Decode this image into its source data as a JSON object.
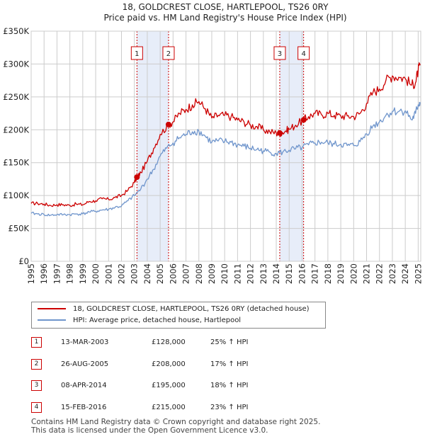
{
  "chart_data": {
    "type": "line",
    "title": "18, GOLDCREST CLOSE, HARTLEPOOL, TS26 0RY",
    "subtitle": "Price paid vs. HM Land Registry's House Price Index (HPI)",
    "x_range": [
      1995,
      2025.2
    ],
    "y_range": [
      0,
      350000
    ],
    "y_ticks": [
      0,
      50000,
      100000,
      150000,
      200000,
      250000,
      300000,
      350000
    ],
    "y_tick_labels": [
      "£0",
      "£50K",
      "£100K",
      "£150K",
      "£200K",
      "£250K",
      "£300K",
      "£350K"
    ],
    "x_ticks": [
      1995,
      1996,
      1997,
      1998,
      1999,
      2000,
      2001,
      2002,
      2003,
      2004,
      2005,
      2006,
      2007,
      2008,
      2009,
      2010,
      2011,
      2012,
      2013,
      2014,
      2015,
      2016,
      2017,
      2018,
      2019,
      2020,
      2021,
      2022,
      2023,
      2024,
      2025
    ],
    "x_tick_labels": [
      "1995",
      "1996",
      "1997",
      "1998",
      "1999",
      "2000",
      "2001",
      "2002",
      "2003",
      "2004",
      "2005",
      "2006",
      "2007",
      "2008",
      "2009",
      "2010",
      "2011",
      "2012",
      "2013",
      "2014",
      "2015",
      "2016",
      "2017",
      "2018",
      "2019",
      "2020",
      "2021",
      "2022",
      "2023",
      "2024",
      "2025"
    ],
    "series": [
      {
        "name": "18, GOLDCREST CLOSE, HARTLEPOOL, TS26 0RY (detached house)",
        "color": "#cc0000",
        "points": [
          [
            1995.0,
            88000
          ],
          [
            1995.5,
            88000
          ],
          [
            1996.0,
            87000
          ],
          [
            1996.5,
            85000
          ],
          [
            1997.0,
            86000
          ],
          [
            1997.5,
            86000
          ],
          [
            1998.0,
            85000
          ],
          [
            1998.5,
            87000
          ],
          [
            1999.0,
            86000
          ],
          [
            1999.5,
            91000
          ],
          [
            2000.0,
            92000
          ],
          [
            2000.5,
            95000
          ],
          [
            2001.0,
            94000
          ],
          [
            2001.5,
            97000
          ],
          [
            2002.0,
            100000
          ],
          [
            2002.5,
            108000
          ],
          [
            2003.0,
            120000
          ],
          [
            2003.2,
            128000
          ],
          [
            2003.5,
            135000
          ],
          [
            2004.0,
            152000
          ],
          [
            2004.5,
            172000
          ],
          [
            2005.0,
            193000
          ],
          [
            2005.65,
            208000
          ],
          [
            2006.0,
            212000
          ],
          [
            2006.5,
            225000
          ],
          [
            2007.0,
            231000
          ],
          [
            2007.5,
            238000
          ],
          [
            2008.0,
            243000
          ],
          [
            2008.5,
            232000
          ],
          [
            2009.0,
            218000
          ],
          [
            2009.5,
            222000
          ],
          [
            2010.0,
            222000
          ],
          [
            2010.5,
            220000
          ],
          [
            2011.0,
            215000
          ],
          [
            2011.5,
            212000
          ],
          [
            2012.0,
            207000
          ],
          [
            2012.5,
            205000
          ],
          [
            2013.0,
            200000
          ],
          [
            2013.5,
            197000
          ],
          [
            2014.0,
            195000
          ],
          [
            2014.27,
            195000
          ],
          [
            2014.7,
            198000
          ],
          [
            2015.0,
            201000
          ],
          [
            2015.5,
            207000
          ],
          [
            2016.12,
            215000
          ],
          [
            2016.5,
            220000
          ],
          [
            2017.0,
            225000
          ],
          [
            2017.5,
            223000
          ],
          [
            2018.0,
            225000
          ],
          [
            2018.5,
            222000
          ],
          [
            2019.0,
            221000
          ],
          [
            2019.5,
            221000
          ],
          [
            2020.0,
            220000
          ],
          [
            2020.5,
            225000
          ],
          [
            2021.0,
            240000
          ],
          [
            2021.5,
            257000
          ],
          [
            2022.0,
            262000
          ],
          [
            2022.5,
            275000
          ],
          [
            2023.0,
            282000
          ],
          [
            2023.5,
            280000
          ],
          [
            2024.0,
            278000
          ],
          [
            2024.5,
            268000
          ],
          [
            2024.8,
            272000
          ],
          [
            2025.0,
            290000
          ],
          [
            2025.15,
            298000
          ]
        ]
      },
      {
        "name": "HPI: Average price, detached house, Hartlepool",
        "color": "#6f95cc",
        "points": [
          [
            1995.0,
            73000
          ],
          [
            1995.5,
            72000
          ],
          [
            1996.0,
            71000
          ],
          [
            1996.5,
            70000
          ],
          [
            1997.0,
            71000
          ],
          [
            1997.5,
            71000
          ],
          [
            1998.0,
            71000
          ],
          [
            1998.5,
            72000
          ],
          [
            1999.0,
            72000
          ],
          [
            1999.5,
            75000
          ],
          [
            2000.0,
            76000
          ],
          [
            2000.5,
            78000
          ],
          [
            2001.0,
            79000
          ],
          [
            2001.5,
            82000
          ],
          [
            2002.0,
            84000
          ],
          [
            2002.5,
            92000
          ],
          [
            2003.0,
            100000
          ],
          [
            2003.5,
            110000
          ],
          [
            2004.0,
            125000
          ],
          [
            2004.5,
            140000
          ],
          [
            2005.0,
            160000
          ],
          [
            2005.5,
            172000
          ],
          [
            2006.0,
            180000
          ],
          [
            2006.5,
            188000
          ],
          [
            2007.0,
            193000
          ],
          [
            2007.5,
            197000
          ],
          [
            2008.0,
            198000
          ],
          [
            2008.5,
            190000
          ],
          [
            2009.0,
            181000
          ],
          [
            2009.5,
            183000
          ],
          [
            2010.0,
            182000
          ],
          [
            2010.5,
            181000
          ],
          [
            2011.0,
            177000
          ],
          [
            2011.5,
            175000
          ],
          [
            2012.0,
            172000
          ],
          [
            2012.5,
            170000
          ],
          [
            2013.0,
            168000
          ],
          [
            2013.5,
            166000
          ],
          [
            2014.0,
            164000
          ],
          [
            2014.5,
            166000
          ],
          [
            2015.0,
            169000
          ],
          [
            2015.5,
            171000
          ],
          [
            2016.0,
            173000
          ],
          [
            2016.5,
            177000
          ],
          [
            2017.0,
            180000
          ],
          [
            2017.5,
            181000
          ],
          [
            2018.0,
            180000
          ],
          [
            2018.5,
            178000
          ],
          [
            2019.0,
            178000
          ],
          [
            2019.5,
            176000
          ],
          [
            2020.0,
            176000
          ],
          [
            2020.5,
            182000
          ],
          [
            2021.0,
            194000
          ],
          [
            2021.5,
            206000
          ],
          [
            2022.0,
            212000
          ],
          [
            2022.5,
            222000
          ],
          [
            2023.0,
            228000
          ],
          [
            2023.5,
            228000
          ],
          [
            2024.0,
            229000
          ],
          [
            2024.5,
            215000
          ],
          [
            2024.8,
            225000
          ],
          [
            2025.0,
            238000
          ],
          [
            2025.15,
            242000
          ]
        ]
      }
    ],
    "shaded_periods": [
      [
        2003.2,
        2005.65
      ],
      [
        2014.27,
        2016.12
      ]
    ],
    "sales": [
      {
        "label": "1",
        "x": 2003.2,
        "price": 128000
      },
      {
        "label": "2",
        "x": 2005.65,
        "price": 208000
      },
      {
        "label": "3",
        "x": 2014.27,
        "price": 195000
      },
      {
        "label": "4",
        "x": 2016.12,
        "price": 215000
      }
    ]
  },
  "legend": {
    "property_label": "18, GOLDCREST CLOSE, HARTLEPOOL, TS26 0RY (detached house)",
    "hpi_label": "HPI: Average price, detached house, Hartlepool"
  },
  "sales_table": [
    {
      "num": "1",
      "date": "13-MAR-2003",
      "price": "£128,000",
      "hpi": "25% ↑ HPI"
    },
    {
      "num": "2",
      "date": "26-AUG-2005",
      "price": "£208,000",
      "hpi": "17% ↑ HPI"
    },
    {
      "num": "3",
      "date": "08-APR-2014",
      "price": "£195,000",
      "hpi": "18% ↑ HPI"
    },
    {
      "num": "4",
      "date": "15-FEB-2016",
      "price": "£215,000",
      "hpi": "23% ↑ HPI"
    }
  ],
  "footer": {
    "line1": "Contains HM Land Registry data © Crown copyright and database right 2025.",
    "line2": "This data is licensed under the Open Government Licence v3.0."
  },
  "colors": {
    "property": "#cc0000",
    "hpi": "#6f95cc",
    "shade": "#dde6f7",
    "grid": "#cccccc"
  }
}
